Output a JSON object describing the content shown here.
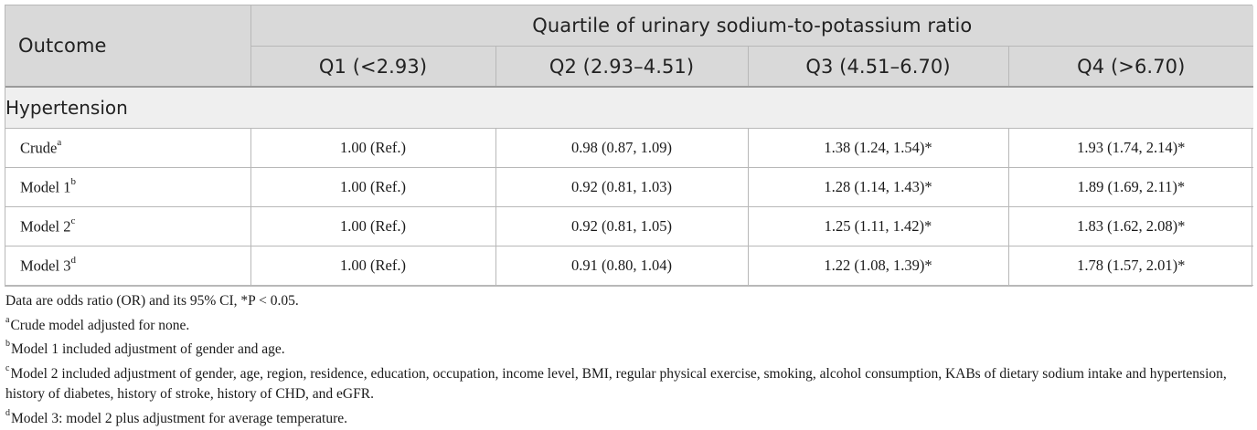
{
  "header": {
    "outcome_label": "Outcome",
    "span_label": "Quartile of urinary sodium-to-potassium ratio",
    "quartiles": [
      "Q1 (<2.93)",
      "Q2 (2.93–4.51)",
      "Q3 (4.51–6.70)",
      "Q4 (>6.70)"
    ]
  },
  "section_label": "Hypertension",
  "rows": [
    {
      "label": "Crude",
      "sup": "a",
      "values": [
        "1.00 (Ref.)",
        "0.98 (0.87, 1.09)",
        "1.38 (1.24, 1.54)*",
        "1.93 (1.74, 2.14)*"
      ]
    },
    {
      "label": "Model 1",
      "sup": "b",
      "values": [
        "1.00 (Ref.)",
        "0.92 (0.81, 1.03)",
        "1.28 (1.14, 1.43)*",
        "1.89 (1.69, 2.11)*"
      ]
    },
    {
      "label": "Model 2",
      "sup": "c",
      "values": [
        "1.00 (Ref.)",
        "0.92 (0.81, 1.05)",
        "1.25 (1.11, 1.42)*",
        "1.83 (1.62, 2.08)*"
      ]
    },
    {
      "label": "Model 3",
      "sup": "d",
      "values": [
        "1.00 (Ref.)",
        "0.91 (0.80, 1.04)",
        "1.22 (1.08, 1.39)*",
        "1.78 (1.57, 2.01)*"
      ]
    }
  ],
  "notes": {
    "main": "Data are odds ratio (OR) and its 95% CI, *P < 0.05.",
    "items": [
      {
        "mark": "a",
        "text": "Crude model adjusted for none."
      },
      {
        "mark": "b",
        "text": "Model 1 included adjustment of gender and age."
      },
      {
        "mark": "c",
        "text": "Model 2 included adjustment of gender, age, region, residence, education, occupation, income level, BMI, regular physical exercise, smoking, alcohol consumption, KABs of dietary sodium intake and hypertension, history of diabetes, history of stroke, history of CHD, and eGFR."
      },
      {
        "mark": "d",
        "text": "Model 3: model 2 plus adjustment for average temperature."
      }
    ]
  }
}
